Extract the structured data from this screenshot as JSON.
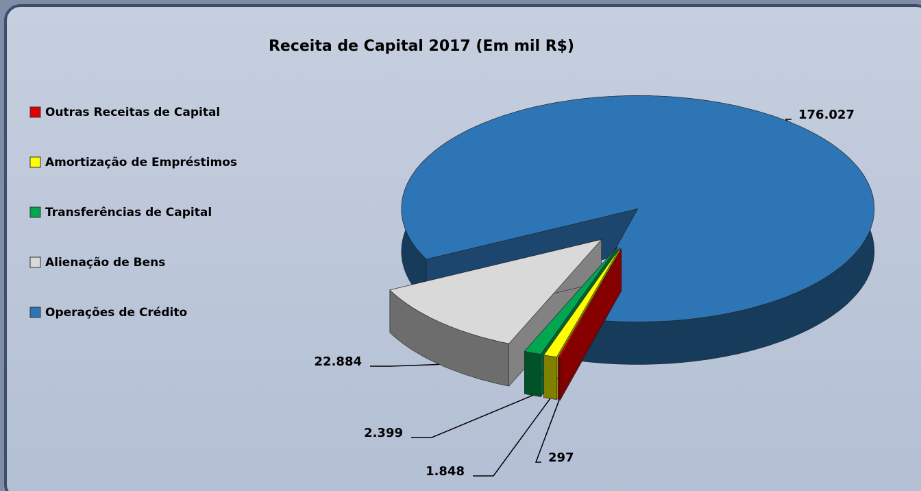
{
  "chart_data": {
    "type": "pie3d",
    "title": "Receita de Capital 2017 (Em mil R$)",
    "categories": [
      "Outras Receitas de Capital",
      "Amortização de Empréstimos",
      "Transferências de Capital",
      "Alienação de Bens",
      "Operações de Crédito"
    ],
    "values": [
      297,
      1848,
      2399,
      22884,
      176027
    ],
    "value_labels": [
      "297",
      "1.848",
      "2.399",
      "22.884",
      "176.027"
    ],
    "colors": [
      "#e00000",
      "#ffff00",
      "#00a650",
      "#d9d9d9",
      "#2e75b6"
    ],
    "legend": "left"
  }
}
